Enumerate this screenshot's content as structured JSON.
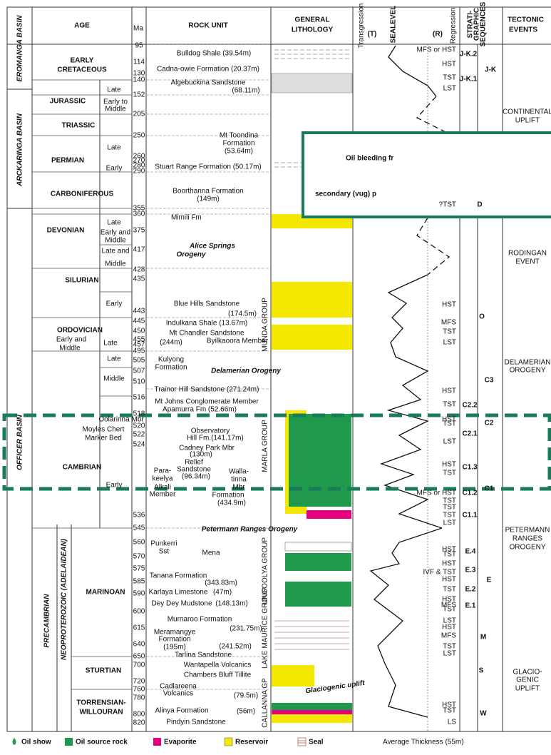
{
  "header": {
    "age": "AGE",
    "ma": "Ma",
    "rock_unit": "ROCK UNIT",
    "lithology_1": "GENERAL",
    "lithology_2": "LITHOLOGY",
    "transgression": "Transgression",
    "t": "(T)",
    "sealevel": "SEALEVEL",
    "r": "(R)",
    "regression": "Regression",
    "sequences_1": "STRATI-",
    "sequences_2": "GRAPHIC",
    "sequences_3": "SEQUENCES",
    "tectonic_1": "TECTONIC",
    "tectonic_2": "EVENTS"
  },
  "basins": [
    "EROMANGA BASIN",
    "ARCKARINGA BASIN",
    "OFFICER BASIN",
    "PRECAMBRIAN",
    "NEOPROTEROZOIC (ADELAIDEAN)"
  ],
  "ages": [
    "EARLY",
    "CRETACEOUS",
    "Late",
    "JURASSIC",
    "Early to",
    "Middle",
    "TRIASSIC",
    "Late",
    "PERMIAN",
    "Early",
    "CARBONIFEROUS",
    "Late",
    "DEVONIAN",
    "Early and",
    "Middle",
    "Late and",
    "Middle",
    "SILURIAN",
    "Early",
    "ORDOVICIAN",
    "Early and",
    "Middle",
    "Late",
    "Late",
    "Middle",
    "CAMBRIAN",
    "Early",
    "MARINOAN",
    "STURTIAN",
    "TORRENSIAN-",
    "WILLOURAN"
  ],
  "ma": [
    95,
    114,
    130,
    140,
    152,
    205,
    250,
    260,
    270,
    280,
    290,
    355,
    360,
    375,
    417,
    428,
    435,
    443,
    445,
    450,
    455,
    457,
    495,
    505,
    507,
    510,
    516,
    518,
    520,
    522,
    524,
    536,
    545,
    560,
    570,
    575,
    585,
    590,
    600,
    615,
    640,
    650,
    700,
    720,
    760,
    780,
    800,
    820
  ],
  "rock_units": [
    "Bulldog Shale  (39.54m)",
    "Cadna-owie Formation  (20.37m)",
    "Algebuckina Sandstone",
    "(68.11m)",
    "Mt Toondina",
    "Formation",
    "(53.64m)",
    "Stuart Range Formation  (50.17m)",
    "Boorthanna Formation",
    "(149m)",
    "Mimili Fm",
    "Blue Hills Sandstone",
    "(174.5m)",
    "Indulkana Shale   (13.67m)",
    "Mt Chandler Sandstone",
    "(244m)",
    "Byilkaoora Member",
    "Kulyong",
    "Formation",
    "Trainor Hill Sandstone (271.24m)",
    "Mt Johns Conglomerate Member",
    "Apamurra Fm (52.66m)",
    "Oolarinna Mbr",
    "Moyles Chert",
    "Marker Bed",
    "Observatory",
    "Hill Fm.(141.17m)",
    "Cadney Park Mbr",
    "(130m)",
    "Relief",
    "Sandstone",
    "(96.34m)",
    "Para-",
    "keelya",
    "Alkali",
    "Member",
    "Walla-",
    "tinna",
    "Mbr",
    "Formation",
    "(434.9m)",
    "Punkerri",
    "Sst",
    "Mena",
    "Tanana Formation",
    "(343.83m)",
    "Karlaya Limestone",
    "(47m)",
    "Dey Dey Mudstone",
    "(148.13m)",
    "Murnaroo Formation",
    "(231.75m)",
    "Meramangye",
    "Formation",
    "(195m)",
    "(241.52m)",
    "Tarlina Sandstone",
    "Wantapella Volcanics",
    "Chambers Bluff Tillite",
    "Cadlareena",
    "Volcanics",
    "(79.5m)",
    "Alinya Formation",
    "(56m)",
    "Pindyin Sandstone"
  ],
  "groups": [
    "MUNDA GROUP",
    "MARLA GROUP",
    "UNGOOLYA GROUP",
    "LAKE MAURICE GROUP",
    "CALLANNA GP"
  ],
  "annotations": [
    "Alice Springs",
    "Orogeny",
    "Delamerian Orogeny",
    "Petermann Ranges  Orogeny",
    "Glaciogenic uplift"
  ],
  "system_tracts": [
    "MFS or HST",
    "HST",
    "TST",
    "LST",
    "?TST",
    "HST",
    "MFS",
    "TST",
    "LST",
    "HST",
    "TST",
    "HST",
    "TST",
    "LST",
    "HST",
    "TST",
    "MFS or HST",
    "TST",
    "TST",
    "TST",
    "LST",
    "HST",
    "TST",
    "HST",
    "IVF & TST",
    "HST",
    "TST",
    "HST",
    "MFS",
    "TST",
    "LST",
    "HST",
    "MFS",
    "TST",
    "LST",
    "HST",
    "TST",
    "LS"
  ],
  "sequences": [
    "J-K.2",
    "J-K",
    "J-K.1",
    "D",
    "O",
    "C3",
    "C2.2",
    "C2",
    "C2.1",
    "C1.3",
    "C1",
    "C1.2",
    "C1.1",
    "E.4",
    "E",
    "E.3",
    "E.2",
    "E.1",
    "M",
    "S",
    "W"
  ],
  "tectonic_events": [
    "CONTINENTAL",
    "UPLIFT",
    "RODINGAN",
    "EVENT",
    "DELAMERIAN",
    "OROGENY",
    "PETERMANN",
    "RANGES",
    "OROGENY",
    "GLACIO-",
    "GENIC",
    "UPLIFT"
  ],
  "callout": [
    "Oil bleeding fr",
    "secondary (vug) p"
  ],
  "legend": [
    "Oil show",
    "Oil source rock",
    "Evaporite",
    "Reservoir",
    "Seal"
  ],
  "average_thickness": "Average Thickness (55m)"
}
